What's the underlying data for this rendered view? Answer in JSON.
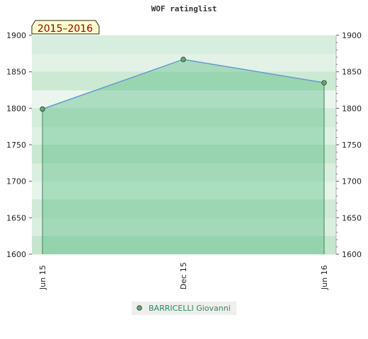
{
  "chart_data": {
    "type": "area",
    "title": "WOF ratinglist",
    "period_badge": "2015–2016",
    "xlabel": "",
    "ylabel": "",
    "x": [
      "Jun 15",
      "Dec 15",
      "Jun 16"
    ],
    "ylim": [
      1600,
      1900
    ],
    "yticks": [
      1600,
      1650,
      1700,
      1750,
      1800,
      1850,
      1900
    ],
    "ytick_labels": [
      "1600",
      "1650",
      "1700",
      "1750",
      "1800",
      "1850",
      "1900"
    ],
    "series": [
      {
        "name": "BARRICELLI Giovanni",
        "values": [
          1799,
          1867,
          1835
        ]
      }
    ],
    "grid": true,
    "legend": "bottom-center",
    "colors": {
      "line": "#6699cc",
      "fill": "#3cb371",
      "marker": "#5fae6b",
      "band_light": "#ebf6ee",
      "band_dark": "#b7dfc2",
      "badge_bg": "#ffffcc",
      "badge_text": "#8b0000",
      "legend_text": "#2e8b57"
    }
  }
}
